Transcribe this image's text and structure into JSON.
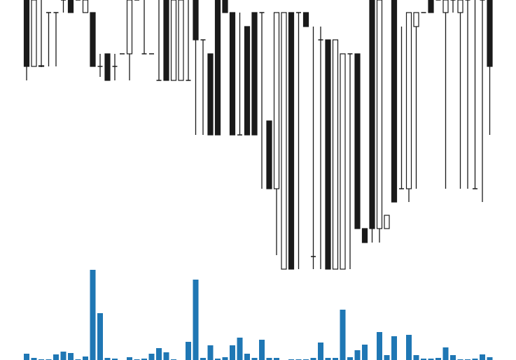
{
  "chart_data": {
    "type": "candlestick",
    "open": [
      400,
      305,
      306,
      382,
      382,
      400,
      400,
      400,
      382,
      382,
      305,
      323,
      305,
      323,
      323,
      400,
      323,
      323,
      285,
      400,
      285,
      285,
      285,
      400,
      343,
      323,
      400,
      400,
      382,
      207,
      362,
      382,
      382,
      227,
      130,
      15,
      382,
      382,
      382,
      33,
      343,
      343,
      15,
      15,
      323,
      323,
      73,
      400,
      73,
      73,
      400,
      130,
      130,
      362,
      382,
      400,
      400,
      382,
      400,
      382,
      400,
      130,
      400,
      400
    ],
    "close": [
      305,
      400,
      305,
      382,
      382,
      400,
      382,
      400,
      400,
      305,
      305,
      285,
      305,
      323,
      400,
      400,
      323,
      323,
      285,
      285,
      400,
      400,
      285,
      343,
      343,
      207,
      207,
      382,
      207,
      207,
      207,
      207,
      382,
      130,
      382,
      382,
      15,
      382,
      362,
      33,
      343,
      15,
      343,
      323,
      323,
      73,
      53,
      73,
      400,
      92,
      111,
      130,
      382,
      382,
      382,
      382,
      400,
      400,
      400,
      400,
      400,
      130,
      400,
      305
    ],
    "high": [
      420,
      420,
      420,
      382,
      382,
      410,
      410,
      420,
      410,
      382,
      323,
      323,
      323,
      323,
      420,
      420,
      420,
      323,
      420,
      420,
      420,
      420,
      420,
      420,
      343,
      323,
      420,
      420,
      382,
      382,
      362,
      382,
      382,
      227,
      382,
      382,
      382,
      382,
      382,
      362,
      362,
      343,
      343,
      323,
      323,
      323,
      73,
      420,
      420,
      92,
      420,
      362,
      382,
      382,
      382,
      420,
      420,
      420,
      420,
      420,
      420,
      420,
      420,
      420
    ],
    "low": [
      285,
      305,
      304,
      305,
      305,
      382,
      382,
      400,
      382,
      305,
      290,
      285,
      285,
      323,
      285,
      400,
      323,
      323,
      285,
      285,
      285,
      285,
      285,
      207,
      207,
      207,
      207,
      382,
      207,
      207,
      207,
      207,
      130,
      130,
      35,
      15,
      15,
      15,
      362,
      15,
      15,
      15,
      15,
      15,
      15,
      73,
      53,
      53,
      53,
      73,
      111,
      130,
      111,
      130,
      382,
      382,
      400,
      130,
      382,
      130,
      130,
      130,
      111,
      207
    ],
    "volume": [
      9,
      3,
      1,
      1,
      8,
      12,
      10,
      1,
      5,
      129,
      67,
      3,
      2,
      0,
      4,
      1,
      2,
      9,
      17,
      11,
      1,
      0,
      26,
      115,
      3,
      21,
      2,
      4,
      21,
      32,
      9,
      3,
      29,
      3,
      3,
      0,
      1,
      1,
      1,
      3,
      25,
      3,
      3,
      72,
      4,
      14,
      22,
      0,
      40,
      7,
      34,
      0,
      36,
      7,
      2,
      2,
      3,
      18,
      7,
      1,
      1,
      2,
      8,
      4
    ],
    "ylim": [
      15,
      400
    ],
    "volume_ylim": [
      0,
      130
    ],
    "up_color": "#ffffff",
    "down_color": "#1a1a1a",
    "volume_color": "#1f77b4"
  }
}
